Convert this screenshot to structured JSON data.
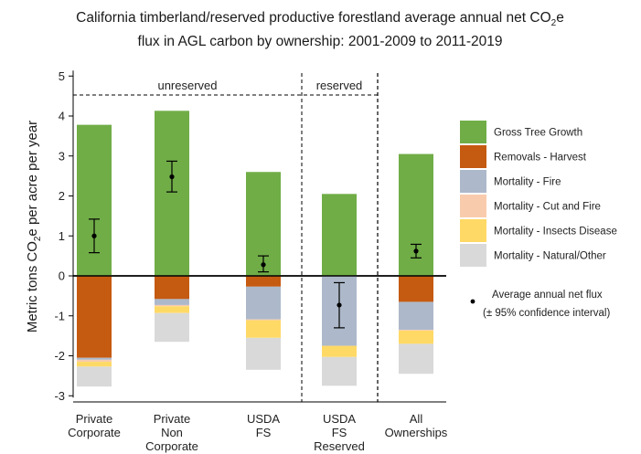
{
  "chart_data": {
    "type": "bar",
    "stacked": true,
    "title_line1": "California timberland/reserved productive forestland average annual net CO",
    "title_line1_sub": "2",
    "title_line1_tail": "e",
    "title_line2": "flux in AGL carbon by ownership: 2001-2009 to 2011-2019",
    "ylabel_pre": "Metric tons CO",
    "ylabel_sub": "2",
    "ylabel_post": "e per acre per year",
    "ylim": [
      -3,
      5
    ],
    "yticks": [
      "-3",
      "-2",
      "-1",
      "0",
      "1",
      "2",
      "3",
      "4",
      "5"
    ],
    "ytick_values": [
      -3,
      -2,
      -1,
      0,
      1,
      2,
      3,
      4,
      5
    ],
    "categories": [
      [
        "Private",
        "Corporate"
      ],
      [
        "Private",
        "Non",
        "Corporate"
      ],
      [
        "USDA",
        "FS"
      ],
      [
        "USDA",
        "FS",
        "Reserved"
      ],
      [
        "All",
        "Ownerships"
      ]
    ],
    "regions": [
      {
        "label": "unreserved"
      },
      {
        "label": "reserved"
      }
    ],
    "series": [
      {
        "name": "Gross Tree Growth",
        "color": "#70ad47",
        "values": [
          3.78,
          4.13,
          2.6,
          2.05,
          3.05
        ]
      },
      {
        "name": "Removals - Harvest",
        "color": "#c55a11",
        "values": [
          -2.05,
          -0.58,
          -0.27,
          0.0,
          -0.65
        ]
      },
      {
        "name": "Mortality - Fire",
        "color": "#adb9ca",
        "values": [
          -0.05,
          -0.15,
          -0.82,
          -1.75,
          -0.7
        ]
      },
      {
        "name": "Mortality - Cut and Fire",
        "color": "#f8cbad",
        "values": [
          -0.05,
          -0.03,
          -0.02,
          0.0,
          -0.02
        ]
      },
      {
        "name": "Mortality - Insects Disease",
        "color": "#ffd966",
        "values": [
          -0.12,
          -0.17,
          -0.44,
          -0.28,
          -0.33
        ]
      },
      {
        "name": "Mortality - Natural/Other",
        "color": "#d9d9d9",
        "values": [
          -0.5,
          -0.72,
          -0.8,
          -0.72,
          -0.75
        ]
      }
    ],
    "net_flux": {
      "legend_label": "Average annual net flux",
      "legend_label2": "(± 95% confidence interval)",
      "values": [
        1.0,
        2.48,
        0.28,
        -0.73,
        0.62
      ],
      "ci_low": [
        0.58,
        2.1,
        0.1,
        -1.3,
        0.45
      ],
      "ci_high": [
        1.42,
        2.87,
        0.5,
        -0.17,
        0.79
      ]
    },
    "grid": false,
    "legend_position": "right"
  }
}
